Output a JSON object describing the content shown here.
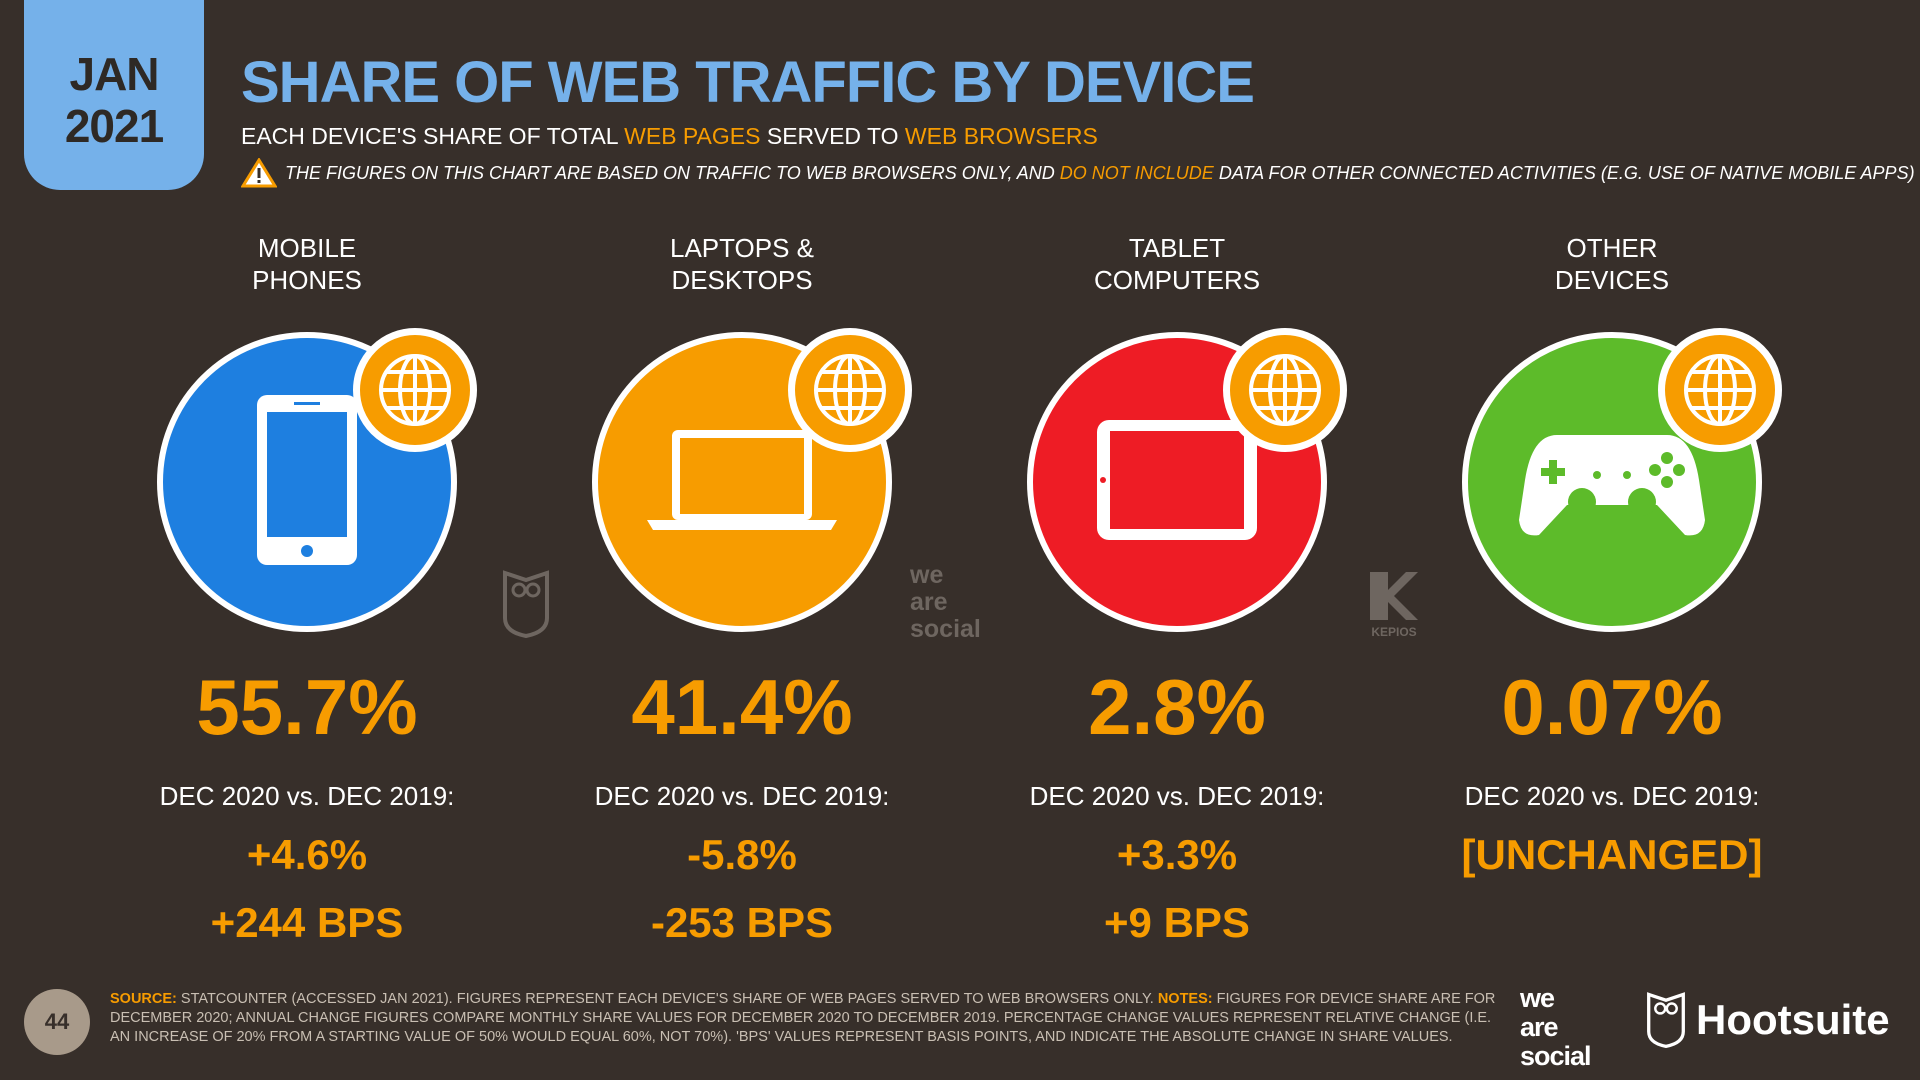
{
  "date_tab": {
    "month": "JAN",
    "year": "2021"
  },
  "header": {
    "title": "SHARE OF WEB TRAFFIC BY DEVICE",
    "subtitle": {
      "p1": "EACH DEVICE'S SHARE OF TOTAL ",
      "h1": "WEB PAGES",
      "p2": " SERVED TO ",
      "h2": "WEB BROWSERS"
    },
    "warning": {
      "p1": "THE FIGURES ON THIS CHART ARE BASED ON TRAFFIC TO WEB BROWSERS ONLY, AND ",
      "h1": "DO NOT INCLUDE",
      "p2": " DATA FOR OTHER CONNECTED ACTIVITIES (E.G. USE OF NATIVE MOBILE APPS)"
    }
  },
  "colors": {
    "background": "#372f2a",
    "accent": "#f79c00",
    "title": "#75b1ea",
    "mobile": "#1e7fe0",
    "laptop": "#f79c00",
    "tablet": "#ee1c25",
    "other": "#5dbb2a"
  },
  "devices": [
    {
      "l1": "MOBILE",
      "l2": "PHONES",
      "icon": "smartphone-icon",
      "share": "55.7%",
      "compare": "DEC 2020 vs. DEC 2019:",
      "change": "+4.6%",
      "bps": "+244 BPS"
    },
    {
      "l1": "LAPTOPS &",
      "l2": "DESKTOPS",
      "icon": "laptop-icon",
      "share": "41.4%",
      "compare": "DEC 2020 vs. DEC 2019:",
      "change": "-5.8%",
      "bps": "-253 BPS"
    },
    {
      "l1": "TABLET",
      "l2": "COMPUTERS",
      "icon": "tablet-icon",
      "share": "2.8%",
      "compare": "DEC 2020 vs. DEC 2019:",
      "change": "+3.3%",
      "bps": "+9 BPS"
    },
    {
      "l1": "OTHER",
      "l2": "DEVICES",
      "icon": "gamepad-icon",
      "share": "0.07%",
      "compare": "DEC 2020 vs. DEC 2019:",
      "change": "[UNCHANGED]",
      "bps": ""
    }
  ],
  "footer": {
    "page": "44",
    "source_label": "SOURCE:",
    "source": " STATCOUNTER (ACCESSED JAN 2021). FIGURES REPRESENT EACH DEVICE'S SHARE OF WEB PAGES SERVED TO WEB BROWSERS ONLY. ",
    "notes_label": "NOTES:",
    "notes": " FIGURES FOR DEVICE SHARE ARE FOR DECEMBER 2020; ANNUAL CHANGE FIGURES COMPARE MONTHLY SHARE VALUES FOR DECEMBER 2020 TO DECEMBER 2019. PERCENTAGE CHANGE VALUES REPRESENT RELATIVE CHANGE (I.E. AN INCREASE OF 20% FROM A STARTING VALUE OF 50% WOULD EQUAL 60%, NOT 70%). 'BPS' VALUES REPRESENT BASIS POINTS, AND INDICATE THE ABSOLUTE CHANGE IN SHARE VALUES."
  },
  "logos": {
    "wearesocial": [
      "we",
      "are",
      "social"
    ],
    "hootsuite": "Hootsuite",
    "kepios": "KEPIOS"
  }
}
